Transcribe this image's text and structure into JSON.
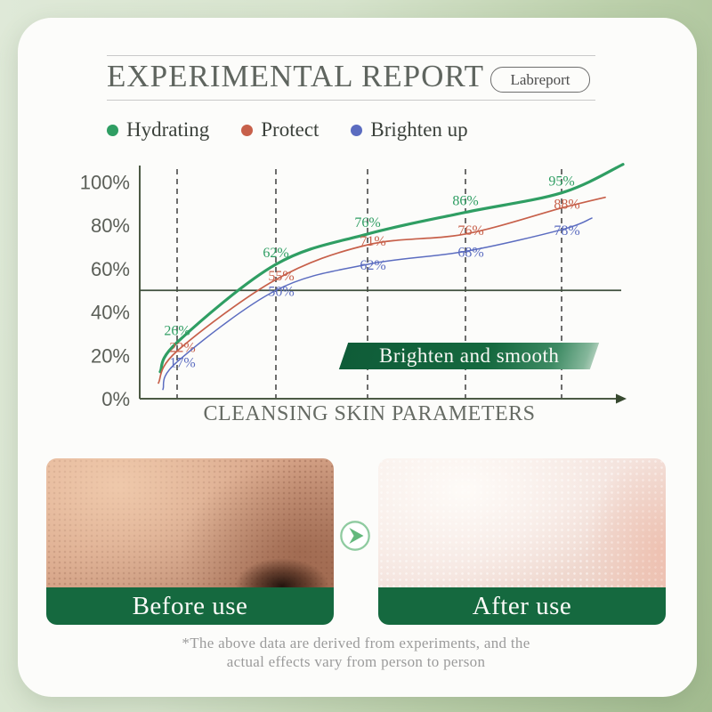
{
  "header": {
    "title": "EXPERIMENTAL REPORT",
    "badge": "Labreport"
  },
  "legend": [
    {
      "label": "Hydrating",
      "color": "#2f9e63"
    },
    {
      "label": "Protect",
      "color": "#c7604a"
    },
    {
      "label": "Brighten up",
      "color": "#5b6cc0"
    }
  ],
  "chart_data": {
    "type": "line",
    "title": "",
    "xlabel": "CLEANSING SKIN PARAMETERS",
    "ylabel": "",
    "ylim": [
      0,
      100
    ],
    "ytick_labels": [
      "100%",
      "80%",
      "60%",
      "40%",
      "20%",
      "0%"
    ],
    "ytick_values": [
      100,
      80,
      60,
      40,
      20,
      0
    ],
    "x_gridline_count": 5,
    "grid_style": "dashed-vertical",
    "reference_line_y": 50,
    "legend_position": "top",
    "axis_arrow": true,
    "series": [
      {
        "name": "Hydrating",
        "color": "#2f9e63",
        "values": [
          26,
          62,
          76,
          86,
          95
        ]
      },
      {
        "name": "Protect",
        "color": "#c7604a",
        "values": [
          22,
          55,
          71,
          76,
          88
        ]
      },
      {
        "name": "Brighten up",
        "color": "#5b6cc0",
        "values": [
          17,
          50,
          62,
          68,
          78
        ]
      }
    ],
    "annotation": "Brighten and smooth"
  },
  "comparison": {
    "before_label": "Before use",
    "after_label": "After use",
    "arrow_icon": "chevron-right-icon"
  },
  "footnote": {
    "line1": "*The above data are derived from experiments, and the",
    "line2": "actual effects vary from person to person"
  }
}
